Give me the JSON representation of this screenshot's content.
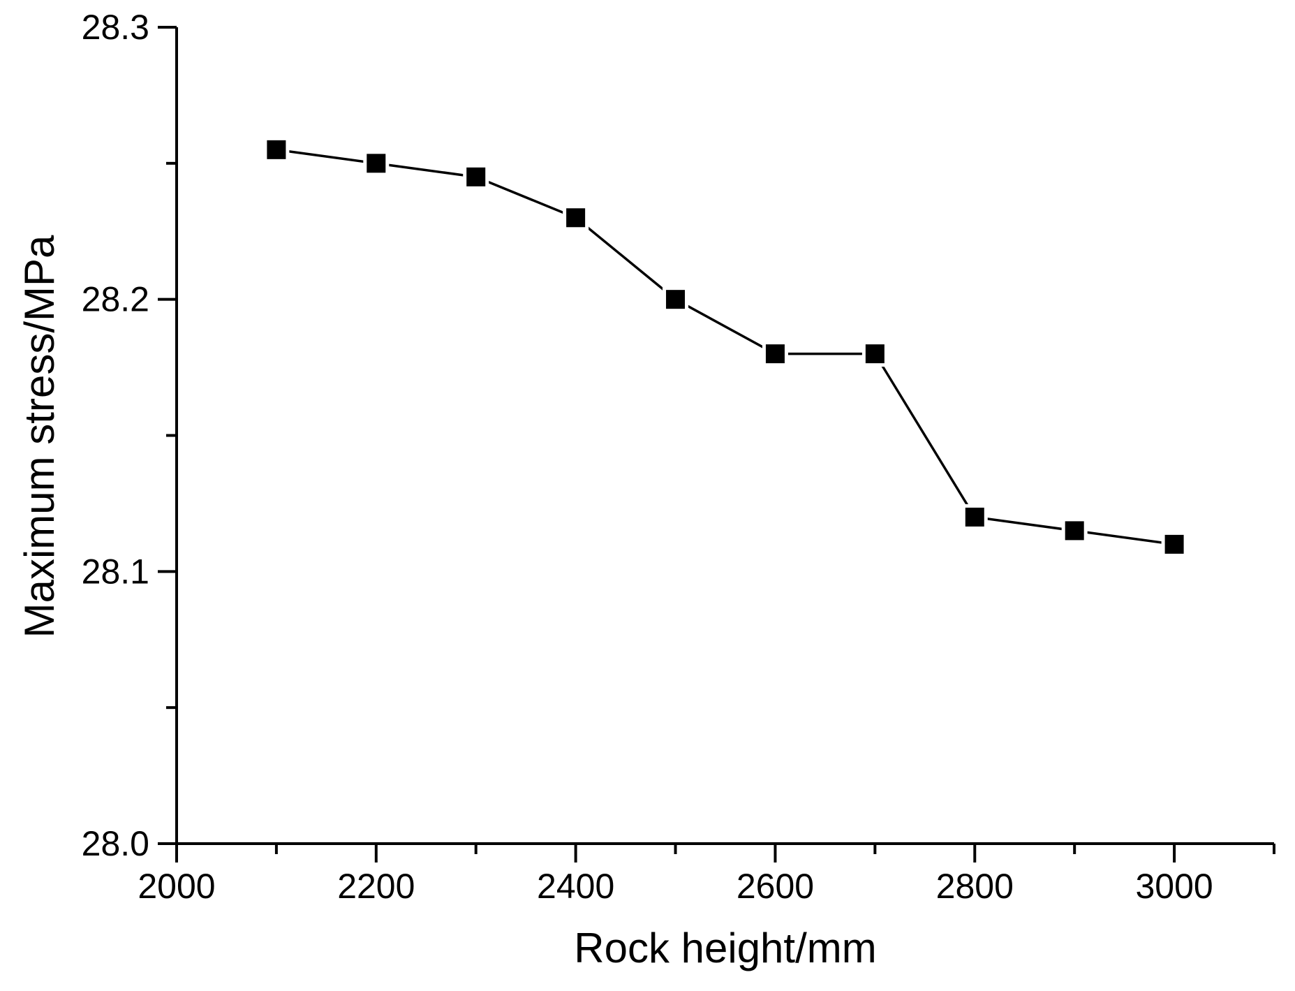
{
  "chart_data": {
    "type": "line",
    "title": "",
    "xlabel": "Rock height/mm",
    "ylabel": "Maximum stress/MPa",
    "x": [
      2100,
      2200,
      2300,
      2400,
      2500,
      2600,
      2700,
      2800,
      2900,
      3000
    ],
    "series": [
      {
        "name": "Maximum stress",
        "values": [
          28.255,
          28.25,
          28.245,
          28.23,
          28.2,
          28.18,
          28.18,
          28.12,
          28.115,
          28.11
        ]
      }
    ],
    "xlim": [
      2000,
      3100
    ],
    "ylim": [
      28.0,
      28.3
    ],
    "x_major_ticks": [
      2000,
      2200,
      2400,
      2600,
      2800,
      3000
    ],
    "x_major_tick_labels": [
      "2000",
      "2200",
      "2400",
      "2600",
      "2800",
      "3000"
    ],
    "x_minor_ticks": [
      2100,
      2300,
      2500,
      2700,
      2900,
      3100
    ],
    "y_major_ticks": [
      28.0,
      28.1,
      28.2,
      28.3
    ],
    "y_major_tick_labels": [
      "28.0",
      "28.1",
      "28.2",
      "28.3"
    ],
    "y_minor_ticks": [
      28.05,
      28.15,
      28.25
    ],
    "grid": false,
    "legend": "none",
    "marker": "square",
    "colors": {
      "line": "#000000",
      "marker": "#000000",
      "marker_halo": "#ffffff",
      "axis": "#000000",
      "text": "#000000",
      "background": "#ffffff"
    }
  }
}
